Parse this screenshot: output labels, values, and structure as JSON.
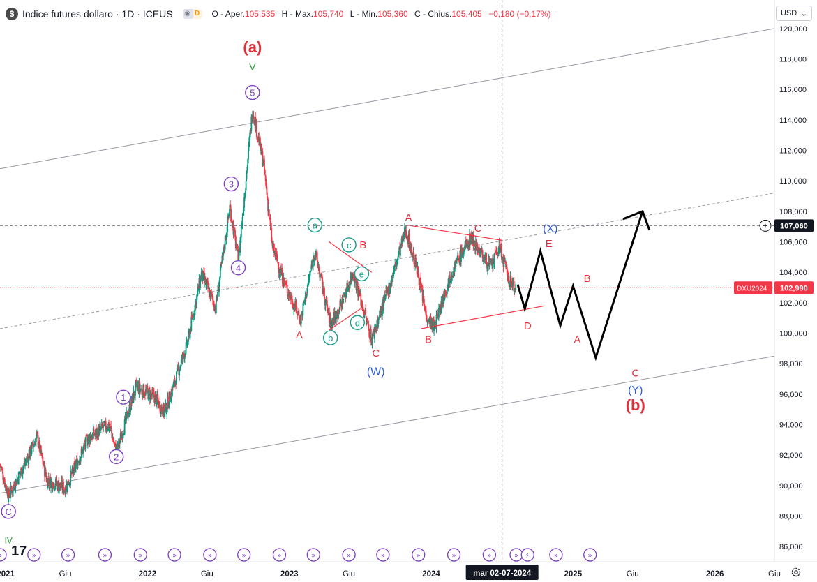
{
  "header": {
    "logo_letter": "$",
    "title": "Indice futures dollaro · 1D · ICEUS",
    "badge_d": "D",
    "o_label": "O - Aper.",
    "o_val": "105,535",
    "h_label": "H - Max.",
    "h_val": "105,740",
    "l_label": "L - Min.",
    "l_val": "105,360",
    "c_label": "C - Chius.",
    "c_val": "105,405",
    "change": "−0,180 (−0,17%)"
  },
  "currency": {
    "label": "USD"
  },
  "crosshair": {
    "price": "107,060",
    "date": "mar 02-07-2024"
  },
  "last_price": {
    "symbol": "DXU2024",
    "price": "102,990"
  },
  "colors": {
    "up": "#089981",
    "down": "#f23645",
    "purple": "#7b3fc0",
    "teal": "#139c8a",
    "red": "#e0303a",
    "blue": "#2f5fd8",
    "green": "#2e9a3a"
  },
  "chart_data": {
    "type": "candlestick",
    "symbol": "DXU2024",
    "timeframe": "1D",
    "ylim": [
      85000,
      120500
    ],
    "y_ticks": [
      86000,
      88000,
      90000,
      92000,
      94000,
      96000,
      98000,
      100000,
      102000,
      104000,
      106000,
      108000,
      110000,
      112000,
      114000,
      116000,
      118000,
      120000
    ],
    "y_tick_labels": [
      "86,000",
      "88,000",
      "90,000",
      "92,000",
      "94,000",
      "96,000",
      "98,000",
      "100,000",
      "102,000",
      "104,000",
      "106,000",
      "108,000",
      "110,000",
      "112,000",
      "114,000",
      "116,000",
      "118,000",
      "120,000"
    ],
    "x_labels": [
      {
        "t": 2021.0,
        "label": "2021",
        "bold": true
      },
      {
        "t": 2021.42,
        "label": "Giu",
        "bold": false
      },
      {
        "t": 2022.0,
        "label": "2022",
        "bold": true
      },
      {
        "t": 2022.42,
        "label": "Giu",
        "bold": false
      },
      {
        "t": 2023.0,
        "label": "2023",
        "bold": true
      },
      {
        "t": 2023.42,
        "label": "Giu",
        "bold": false
      },
      {
        "t": 2024.0,
        "label": "2024",
        "bold": true
      },
      {
        "t": 2025.0,
        "label": "2025",
        "bold": true
      },
      {
        "t": 2025.42,
        "label": "Giu",
        "bold": false
      },
      {
        "t": 2026.0,
        "label": "2026",
        "bold": true
      },
      {
        "t": 2026.42,
        "label": "Giu",
        "bold": false
      }
    ],
    "price_path": [
      [
        2020.96,
        91400
      ],
      [
        2021.02,
        89300
      ],
      [
        2021.15,
        91700
      ],
      [
        2021.22,
        93200
      ],
      [
        2021.29,
        90400
      ],
      [
        2021.42,
        89800
      ],
      [
        2021.58,
        93100
      ],
      [
        2021.73,
        94000
      ],
      [
        2021.78,
        92200
      ],
      [
        2021.92,
        96500
      ],
      [
        2022.05,
        95800
      ],
      [
        2022.12,
        94800
      ],
      [
        2022.28,
        99300
      ],
      [
        2022.38,
        103900
      ],
      [
        2022.48,
        101700
      ],
      [
        2022.58,
        108300
      ],
      [
        2022.64,
        104800
      ],
      [
        2022.74,
        114700
      ],
      [
        2022.82,
        111000
      ],
      [
        2022.88,
        105700
      ],
      [
        2022.96,
        103400
      ],
      [
        2023.08,
        100900
      ],
      [
        2023.18,
        105400
      ],
      [
        2023.29,
        100600
      ],
      [
        2023.36,
        101800
      ],
      [
        2023.45,
        104000
      ],
      [
        2023.58,
        99600
      ],
      [
        2023.72,
        103500
      ],
      [
        2023.82,
        106800
      ],
      [
        2023.91,
        103800
      ],
      [
        2023.96,
        101300
      ],
      [
        2024.02,
        100400
      ],
      [
        2024.14,
        104000
      ],
      [
        2024.28,
        106300
      ],
      [
        2024.42,
        104300
      ],
      [
        2024.48,
        105700
      ],
      [
        2024.55,
        103400
      ],
      [
        2024.6,
        102990
      ]
    ],
    "channel_lines": [
      {
        "name": "upper",
        "from": [
          2020.96,
          110800
        ],
        "to": [
          2026.42,
          120000
        ],
        "style": "solid"
      },
      {
        "name": "lower",
        "from": [
          2020.96,
          89500
        ],
        "to": [
          2026.42,
          98500
        ],
        "style": "solid"
      },
      {
        "name": "mid",
        "from": [
          2020.96,
          100300
        ],
        "to": [
          2026.42,
          109200
        ],
        "style": "dashed"
      }
    ],
    "triangle_lines": [
      {
        "from": [
          2023.83,
          107100
        ],
        "to": [
          2024.5,
          106100
        ]
      },
      {
        "from": [
          2023.93,
          100300
        ],
        "to": [
          2024.8,
          101800
        ]
      },
      {
        "from": [
          2023.28,
          106000
        ],
        "to": [
          2023.58,
          104000
        ]
      },
      {
        "from": [
          2023.28,
          100200
        ],
        "to": [
          2023.5,
          101600
        ]
      }
    ],
    "projection_path": [
      [
        2024.61,
        103200
      ],
      [
        2024.66,
        101600
      ],
      [
        2024.77,
        105400
      ],
      [
        2024.91,
        100500
      ],
      [
        2025.0,
        103100
      ],
      [
        2025.16,
        98400
      ],
      [
        2025.49,
        108000
      ]
    ],
    "wave_labels": [
      {
        "text": "(a)",
        "t": 2022.74,
        "p": 118800,
        "color": "red",
        "size": 22
      },
      {
        "text": "V",
        "t": 2022.74,
        "p": 117500,
        "color": "green",
        "size": 15
      },
      {
        "text": "5",
        "t": 2022.74,
        "p": 115800,
        "color": "purple",
        "circle": true
      },
      {
        "text": "3",
        "t": 2022.59,
        "p": 109800,
        "color": "purple",
        "circle": true
      },
      {
        "text": "4",
        "t": 2022.64,
        "p": 104300,
        "color": "purple",
        "circle": true
      },
      {
        "text": "1",
        "t": 2021.83,
        "p": 95800,
        "color": "purple",
        "circle": true
      },
      {
        "text": "2",
        "t": 2021.78,
        "p": 91900,
        "color": "purple",
        "circle": true
      },
      {
        "text": "C",
        "t": 2021.02,
        "p": 88300,
        "color": "purple",
        "circle": true
      },
      {
        "text": "IV",
        "t": 2021.02,
        "p": 86400,
        "color": "green",
        "size": 12
      },
      {
        "text": "a",
        "t": 2023.18,
        "p": 107100,
        "color": "teal",
        "circle": true
      },
      {
        "text": "b",
        "t": 2023.29,
        "p": 99700,
        "color": "teal",
        "circle": true
      },
      {
        "text": "c",
        "t": 2023.42,
        "p": 105800,
        "color": "teal",
        "circle": true
      },
      {
        "text": "d",
        "t": 2023.48,
        "p": 100700,
        "color": "teal",
        "circle": true
      },
      {
        "text": "e",
        "t": 2023.51,
        "p": 103900,
        "color": "teal",
        "circle": true
      },
      {
        "text": "A",
        "t": 2023.07,
        "p": 99900,
        "color": "red",
        "size": 15
      },
      {
        "text": "B",
        "t": 2023.52,
        "p": 105800,
        "color": "red",
        "size": 15
      },
      {
        "text": "C",
        "t": 2023.61,
        "p": 98700,
        "color": "red",
        "size": 15
      },
      {
        "text": "(W)",
        "t": 2023.61,
        "p": 97500,
        "color": "blue",
        "size": 16
      },
      {
        "text": "A",
        "t": 2023.84,
        "p": 107600,
        "color": "red",
        "size": 15
      },
      {
        "text": "B",
        "t": 2023.98,
        "p": 99600,
        "color": "red",
        "size": 15
      },
      {
        "text": "C",
        "t": 2024.33,
        "p": 106900,
        "color": "red",
        "size": 15
      },
      {
        "text": "(X)",
        "t": 2024.84,
        "p": 106900,
        "color": "blue",
        "size": 16
      },
      {
        "text": "E",
        "t": 2024.83,
        "p": 105900,
        "color": "red",
        "size": 15
      },
      {
        "text": "D",
        "t": 2024.68,
        "p": 100500,
        "color": "red",
        "size": 15
      },
      {
        "text": "A",
        "t": 2025.03,
        "p": 99600,
        "color": "red",
        "size": 15
      },
      {
        "text": "B",
        "t": 2025.1,
        "p": 103600,
        "color": "red",
        "size": 15
      },
      {
        "text": "C",
        "t": 2025.44,
        "p": 97400,
        "color": "red",
        "size": 15
      },
      {
        "text": "(Y)",
        "t": 2025.44,
        "p": 96300,
        "color": "blue",
        "size": 16
      },
      {
        "text": "(b)",
        "t": 2025.44,
        "p": 95300,
        "color": "red",
        "size": 22
      }
    ],
    "timeline_markers": [
      2020.96,
      2021.2,
      2021.44,
      2021.7,
      2021.95,
      2022.19,
      2022.44,
      2022.68,
      2022.93,
      2023.17,
      2023.42,
      2023.66,
      2023.91,
      2024.16,
      2024.41,
      2024.6,
      2024.68,
      2024.88,
      2025.12
    ]
  }
}
